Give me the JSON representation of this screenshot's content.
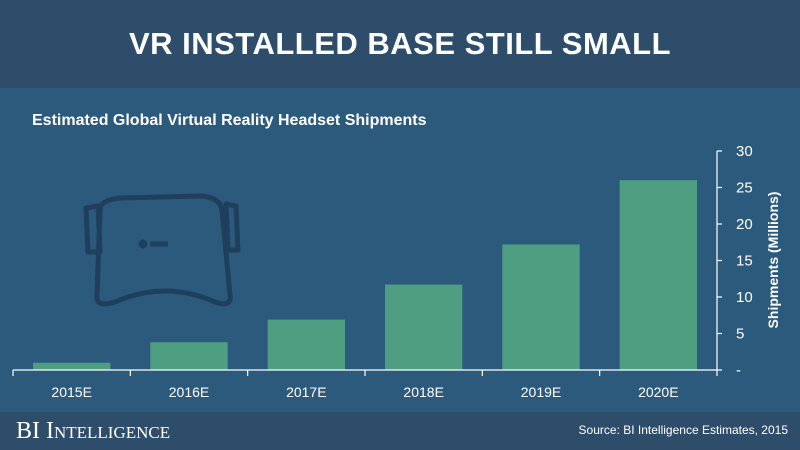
{
  "header": {
    "title": "VR INSTALLED BASE STILL SMALL"
  },
  "footer": {
    "logo": "BI Intelligence",
    "source": "Source: BI Intelligence Estimates, 2015"
  },
  "icons": {
    "decoration": "vr-headset-icon"
  },
  "colors": {
    "bar": "#4e9f82",
    "background": "#2c5a7c",
    "header": "#2e4d6b"
  },
  "chart_data": {
    "type": "bar",
    "title": "Estimated Global Virtual Reality Headset Shipments",
    "categories": [
      "2015E",
      "2016E",
      "2017E",
      "2018E",
      "2019E",
      "2020E"
    ],
    "values": [
      1.0,
      3.8,
      6.9,
      11.7,
      17.2,
      26.0
    ],
    "ylabel": "Shipments (Millions)",
    "ylim": [
      0,
      30
    ],
    "yticks": [
      0,
      5,
      10,
      15,
      20,
      25,
      30
    ],
    "ytick_labels": [
      "-",
      "5",
      "10",
      "15",
      "20",
      "25",
      "30"
    ],
    "y_axis_side": "right",
    "grid": false
  }
}
